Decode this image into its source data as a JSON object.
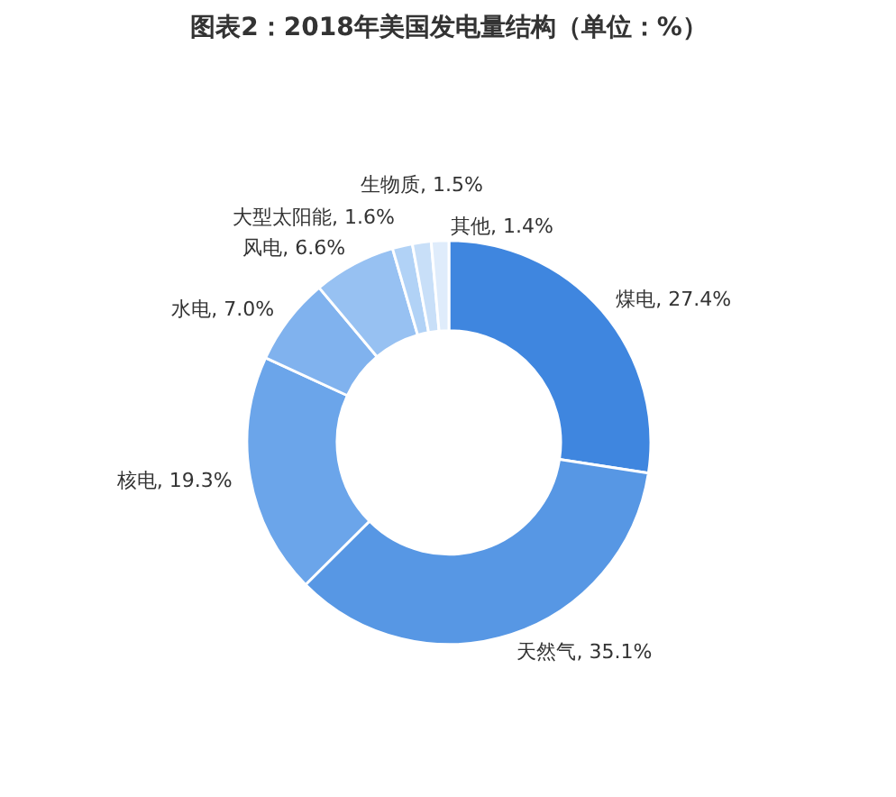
{
  "chart_data": {
    "type": "donut",
    "title": "图表2：2018年美国发电量结构（单位：%）",
    "categories": [
      "煤电",
      "天然气",
      "核电",
      "水电",
      "风电",
      "大型太阳能",
      "生物质",
      "其他"
    ],
    "values": [
      27.4,
      35.1,
      19.3,
      7.0,
      6.6,
      1.6,
      1.5,
      1.4
    ],
    "value_labels": [
      "27.4%",
      "35.1%",
      "19.3%",
      "7.0%",
      "6.6%",
      "1.6%",
      "1.5%",
      "1.4%"
    ],
    "colors": [
      "#3f86df",
      "#5797e4",
      "#6ba5ea",
      "#80b2ee",
      "#97c1f2",
      "#b1d2f6",
      "#c8dff8",
      "#dfecfb"
    ]
  }
}
